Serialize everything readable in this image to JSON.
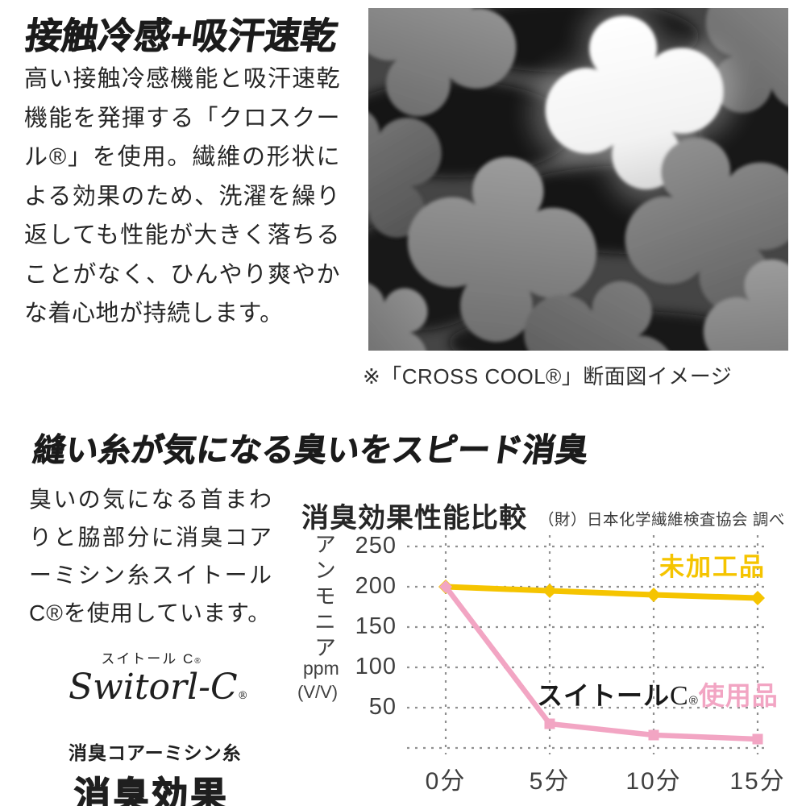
{
  "page": {
    "background": "#ffffff"
  },
  "cool_section": {
    "heading": "接触冷感+吸汗速乾",
    "body": "高い接触冷感機能と吸汗速乾機能を発揮する「クロスクール®」を使用。繊維の形状による効果のため、洗濯を繰り返しても性能が大きく落ちることがなく、ひんやり爽やかな着心地が持続します。",
    "image_caption": "※「CROSS COOL®」断面図イメージ"
  },
  "deodorant_section": {
    "heading": "縫い糸が気になる臭いをスピード消臭",
    "body": "臭いの気になる首まわりと脇部分に消臭コアーミシン糸スイトールC®を使用しています。",
    "logo": {
      "kana_name": "スイトール C",
      "kana_reg": "®",
      "script_name": "Switorl-C",
      "script_reg": "®",
      "subtitle": "消臭コアーミシン糸",
      "title": "消臭効果"
    }
  },
  "chart_data": {
    "type": "line",
    "title": "消臭効果性能比較",
    "subtitle": "（財）日本化学繊維検査協会 調べ",
    "ylabel": "アンモニア",
    "y_unit_line1": "ppm",
    "y_unit_line2": "(V/V)",
    "categories": [
      "0分",
      "5分",
      "10分",
      "15分"
    ],
    "yticks": [
      250,
      200,
      150,
      100,
      50
    ],
    "ylim": [
      0,
      250
    ],
    "grid": "dashed",
    "grid_color": "#909090",
    "legend_position": "inline-labels",
    "series": [
      {
        "name": "未加工品",
        "color": "#F5C400",
        "marker": "diamond",
        "values": [
          200,
          195,
          190,
          186
        ]
      },
      {
        "name": "スイトールC®使用品",
        "name_parts": {
          "black": "スイトール",
          "c": "C",
          "reg": "®",
          "pink": "使用品"
        },
        "color": "#F2A5C3",
        "marker": "square",
        "values": [
          200,
          30,
          16,
          11
        ]
      }
    ]
  }
}
